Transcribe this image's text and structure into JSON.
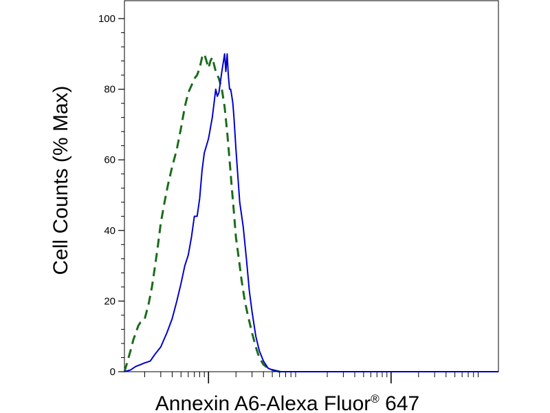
{
  "chart_data": {
    "type": "line",
    "title": "",
    "xlabel": "Annexin A6-Alexa Fluor",
    "xlabel_superscript": "®",
    "xlabel_suffix": " 647",
    "ylabel": "Cell Counts (% Max)",
    "x_scale": "log",
    "x_tick_labels_visible": false,
    "x_major_ticks": [
      100,
      10000
    ],
    "x_minor_ticks": [
      20,
      30,
      40,
      50,
      60,
      70,
      80,
      90,
      200,
      300,
      400,
      500,
      600,
      700,
      800,
      900,
      2000,
      3000,
      4000,
      5000,
      6000,
      7000,
      8000,
      9000,
      20000,
      30000,
      40000,
      50000,
      60000,
      70000,
      80000,
      90000
    ],
    "xlim": [
      12,
      150000
    ],
    "ylim": [
      0,
      100
    ],
    "y_ticks": [
      0,
      20,
      40,
      60,
      80,
      100
    ],
    "grid": false,
    "legend": "none",
    "series": [
      {
        "style": "dashed",
        "color": "#1a6b1a",
        "x": [
          12,
          13,
          14,
          15,
          16,
          17,
          18,
          20,
          22,
          24,
          26,
          28,
          30,
          33,
          36,
          40,
          45,
          50,
          55,
          60,
          65,
          70,
          75,
          80,
          85,
          90,
          95,
          100,
          105,
          110,
          115,
          120,
          125,
          130,
          140,
          150,
          160,
          170,
          180,
          190,
          200,
          215,
          230,
          250,
          270,
          300,
          330,
          360,
          400,
          450,
          500,
          600,
          700
        ],
        "y": [
          0,
          3,
          6,
          9,
          11,
          13,
          14,
          15,
          19,
          24,
          30,
          36,
          42,
          48,
          53,
          58,
          63,
          69,
          75,
          79,
          81,
          83,
          84,
          86,
          89,
          90,
          88,
          86,
          88,
          89,
          87,
          85,
          84,
          83,
          80,
          75,
          68,
          60,
          52,
          45,
          38,
          32,
          26,
          20,
          16,
          11,
          7,
          4,
          2,
          1,
          0.5,
          0,
          0
        ]
      },
      {
        "style": "solid",
        "color": "#0000cc",
        "x": [
          12,
          14,
          16,
          18,
          20,
          23,
          26,
          30,
          35,
          40,
          45,
          50,
          55,
          60,
          65,
          70,
          75,
          80,
          85,
          90,
          95,
          100,
          110,
          120,
          125,
          130,
          140,
          150,
          155,
          160,
          165,
          170,
          175,
          180,
          185,
          190,
          200,
          210,
          220,
          240,
          260,
          280,
          300,
          330,
          360,
          400,
          450,
          500,
          550,
          600,
          700,
          1000,
          10000,
          150000
        ],
        "y": [
          0,
          0.5,
          1.5,
          2,
          2.5,
          3,
          5,
          7,
          11,
          15,
          20,
          25,
          30,
          33,
          38,
          44,
          44,
          49,
          57,
          62,
          64,
          66,
          72,
          80,
          78,
          79,
          85,
          90,
          85,
          90,
          84,
          80,
          80,
          78,
          76,
          72,
          63,
          55,
          48,
          41,
          32,
          23,
          17,
          10,
          6,
          3,
          1,
          0.5,
          0.2,
          0,
          0,
          0,
          0,
          0
        ]
      }
    ]
  }
}
